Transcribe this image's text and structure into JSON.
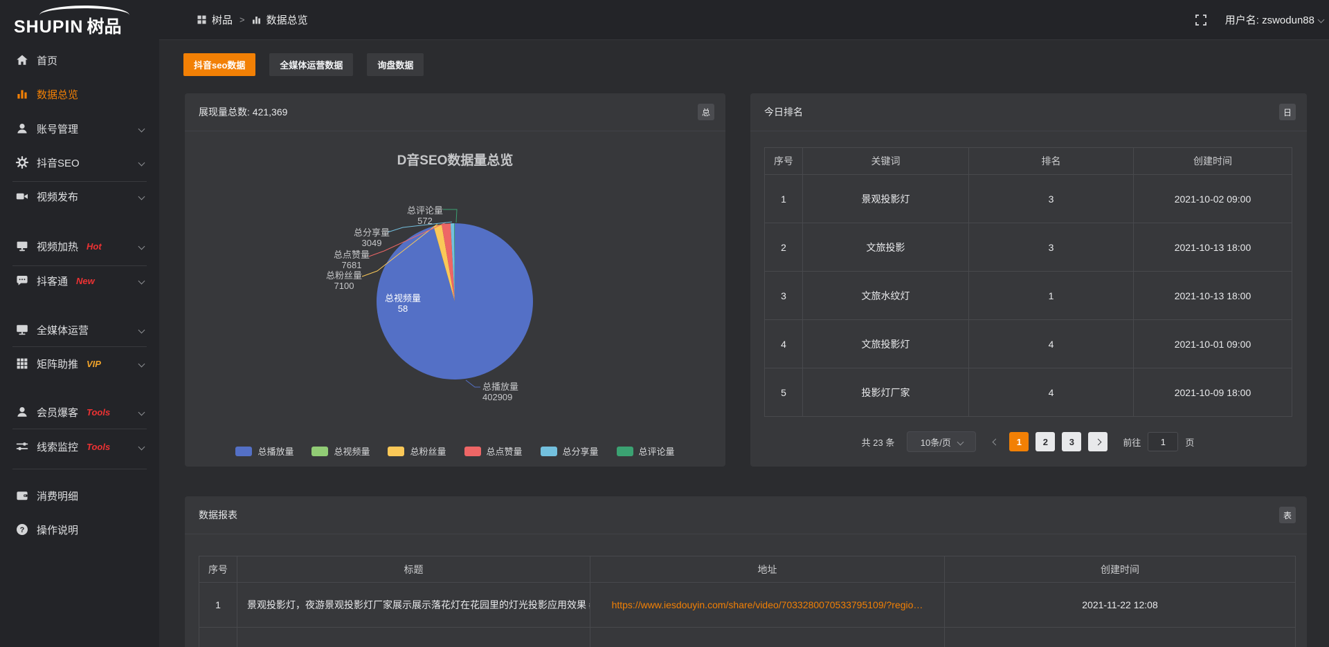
{
  "header": {
    "logo_en": "SHUPIN",
    "logo_cn": "树品",
    "breadcrumb": {
      "root": "树品",
      "sep": ">",
      "current": "数据总览"
    },
    "user_label": "用户名: zswodun88"
  },
  "sidebar": {
    "items": [
      {
        "label": "首页"
      },
      {
        "label": "数据总览"
      },
      {
        "label": "账号管理"
      },
      {
        "label": "抖音SEO"
      },
      {
        "label": "视频发布"
      },
      {
        "label": "视频加热",
        "tag": "Hot"
      },
      {
        "label": "抖客通",
        "tag": "New"
      },
      {
        "label": "全媒体运营"
      },
      {
        "label": "矩阵助推",
        "tag": "VIP"
      },
      {
        "label": "会员爆客",
        "tag": "Tools"
      },
      {
        "label": "线索监控",
        "tag": "Tools"
      },
      {
        "label": "消费明细"
      },
      {
        "label": "操作说明"
      }
    ]
  },
  "tabs": {
    "items": [
      {
        "label": "抖音seo数据"
      },
      {
        "label": "全媒体运营数据"
      },
      {
        "label": "询盘数据"
      }
    ]
  },
  "overview_panel": {
    "title": "展现量总数: 421,369",
    "badge": "总"
  },
  "chart_data": {
    "type": "pie",
    "title": "D音SEO数据量总览",
    "total": 421369,
    "start_angle": "top-clockwise",
    "legend_position": "bottom",
    "slices": [
      {
        "name": "总播放量",
        "value": 402909,
        "color": "#5470c6"
      },
      {
        "name": "总视频量",
        "value": 58,
        "color": "#91cc75"
      },
      {
        "name": "总粉丝量",
        "value": 7100,
        "color": "#fac858"
      },
      {
        "name": "总点赞量",
        "value": 7681,
        "color": "#ee6666"
      },
      {
        "name": "总分享量",
        "value": 3049,
        "color": "#73c0de"
      },
      {
        "name": "总评论量",
        "value": 572,
        "color": "#3ba272"
      }
    ]
  },
  "rank_panel": {
    "title": "今日排名",
    "badge": "日",
    "columns": [
      "序号",
      "关键词",
      "排名",
      "创建时间"
    ],
    "rows": [
      [
        "1",
        "景观投影灯",
        "3",
        "2021-10-02 09:00"
      ],
      [
        "2",
        "文旅投影",
        "3",
        "2021-10-13 18:00"
      ],
      [
        "3",
        "文旅水纹灯",
        "1",
        "2021-10-13 18:00"
      ],
      [
        "4",
        "文旅投影灯",
        "4",
        "2021-10-01 09:00"
      ],
      [
        "5",
        "投影灯厂家",
        "4",
        "2021-10-09 18:00"
      ]
    ],
    "pagination": {
      "total": "共 23 条",
      "page_size": "10条/页",
      "pages": [
        "1",
        "2",
        "3"
      ],
      "active_page": "1",
      "goto_label": "前往",
      "goto_value": "1",
      "goto_unit": "页"
    }
  },
  "report_panel": {
    "title": "数据报表",
    "badge": "表",
    "columns": [
      "序号",
      "标题",
      "地址",
      "创建时间"
    ],
    "rows": [
      {
        "no": "1",
        "title": "景观投影灯，夜游景观投影灯厂家展示展示落花灯在花园里的灯光投影应用效果 #…",
        "url": "https://www.iesdouyin.com/share/video/7033280070533795109/?regio…",
        "created": "2021-11-22 12:08"
      }
    ]
  },
  "colors": {
    "accent": "#f28005",
    "tag_red": "#ed3233",
    "tag_gold": "#f0a32a",
    "panel_bg": "#37383b",
    "page_bg": "#2b2c2f",
    "chrome_bg": "#232428"
  }
}
